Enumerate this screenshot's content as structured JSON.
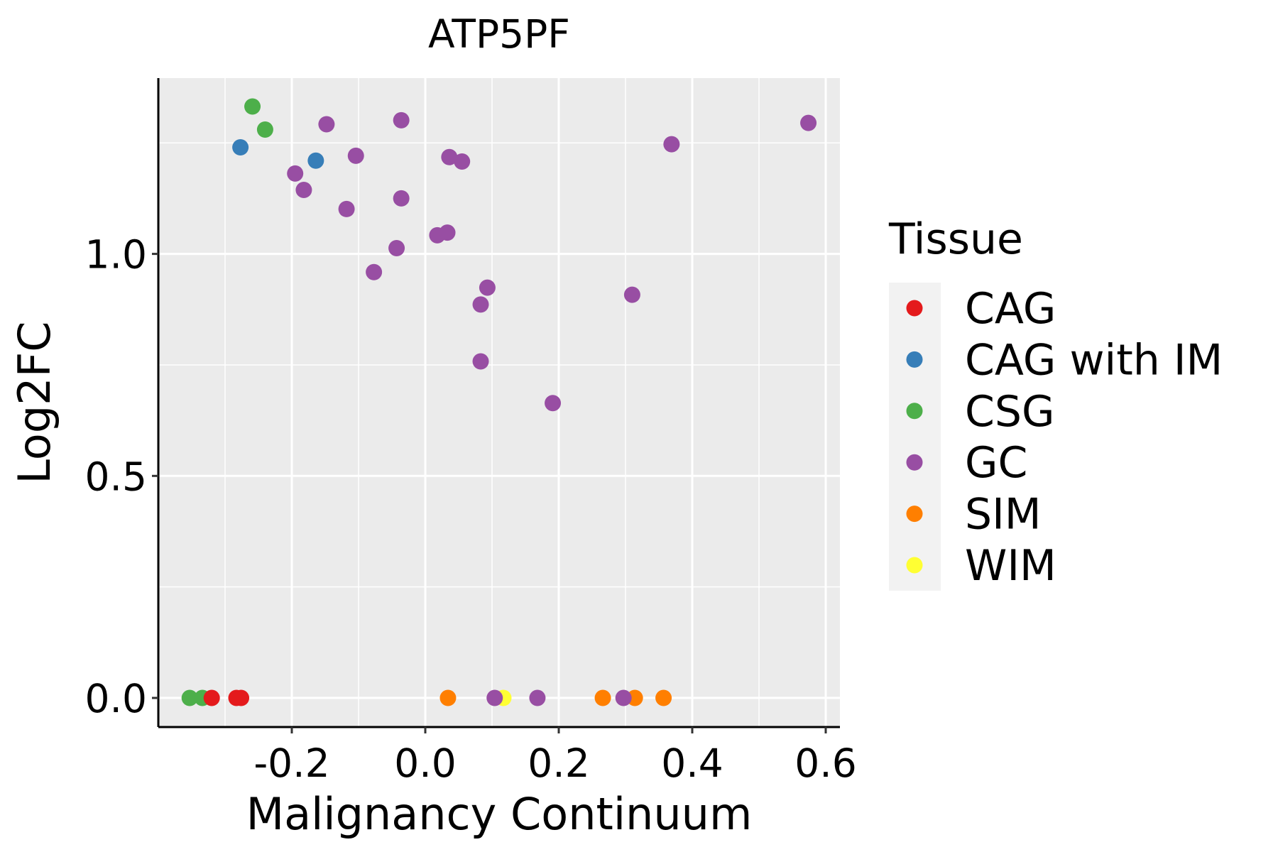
{
  "chart_data": {
    "type": "scatter",
    "title": "ATP5PF",
    "xlabel": "Malignancy Continuum",
    "ylabel": "Log2FC",
    "xlim": [
      -0.4,
      0.625
    ],
    "ylim": [
      -0.065,
      1.4
    ],
    "x_ticks": [
      -0.2,
      0.0,
      0.2,
      0.4,
      0.6
    ],
    "x_tick_labels": [
      "-0.2",
      "0.0",
      "0.2",
      "0.4",
      "0.6"
    ],
    "y_ticks": [
      0.0,
      0.5,
      1.0
    ],
    "y_tick_labels": [
      "0.0",
      "0.5",
      "1.0"
    ],
    "grid": true,
    "legend": {
      "title": "Tissue",
      "placement": "right",
      "entries": [
        {
          "label": "CAG",
          "color": "#E41A1C"
        },
        {
          "label": "CAG with IM",
          "color": "#377EB8"
        },
        {
          "label": "CSG",
          "color": "#4DAF4A"
        },
        {
          "label": "GC",
          "color": "#984EA3"
        },
        {
          "label": "SIM",
          "color": "#FF7F00"
        },
        {
          "label": "WIM",
          "color": "#FFFF33"
        }
      ]
    },
    "series": [
      {
        "name": "CSG",
        "points": [
          [
            -0.259,
            1.332
          ],
          [
            -0.24,
            1.28
          ],
          [
            -0.353,
            0
          ],
          [
            -0.334,
            0
          ]
        ]
      },
      {
        "name": "CAG with IM",
        "points": [
          [
            -0.277,
            1.24
          ],
          [
            -0.164,
            1.21
          ]
        ]
      },
      {
        "name": "CAG",
        "points": [
          [
            -0.32,
            0
          ],
          [
            -0.283,
            0
          ],
          [
            -0.276,
            0
          ]
        ]
      },
      {
        "name": "SIM",
        "points": [
          [
            0.034,
            0
          ],
          [
            0.266,
            0
          ],
          [
            0.314,
            0
          ],
          [
            0.357,
            0
          ]
        ]
      },
      {
        "name": "WIM",
        "points": [
          [
            0.117,
            0
          ]
        ]
      },
      {
        "name": "GC",
        "points": [
          [
            -0.148,
            1.292
          ],
          [
            -0.036,
            1.301
          ],
          [
            -0.104,
            1.221
          ],
          [
            -0.195,
            1.181
          ],
          [
            -0.182,
            1.144
          ],
          [
            -0.036,
            1.125
          ],
          [
            -0.118,
            1.101
          ],
          [
            0.036,
            1.218
          ],
          [
            0.055,
            1.208
          ],
          [
            0.018,
            1.042
          ],
          [
            0.033,
            1.048
          ],
          [
            -0.043,
            1.013
          ],
          [
            -0.077,
            0.959
          ],
          [
            0.093,
            0.924
          ],
          [
            0.083,
            0.886
          ],
          [
            0.083,
            0.758
          ],
          [
            0.191,
            0.664
          ],
          [
            0.31,
            0.908
          ],
          [
            0.369,
            1.247
          ],
          [
            0.574,
            1.295
          ],
          [
            0.104,
            0
          ],
          [
            0.168,
            0
          ],
          [
            0.297,
            0
          ]
        ]
      }
    ]
  }
}
